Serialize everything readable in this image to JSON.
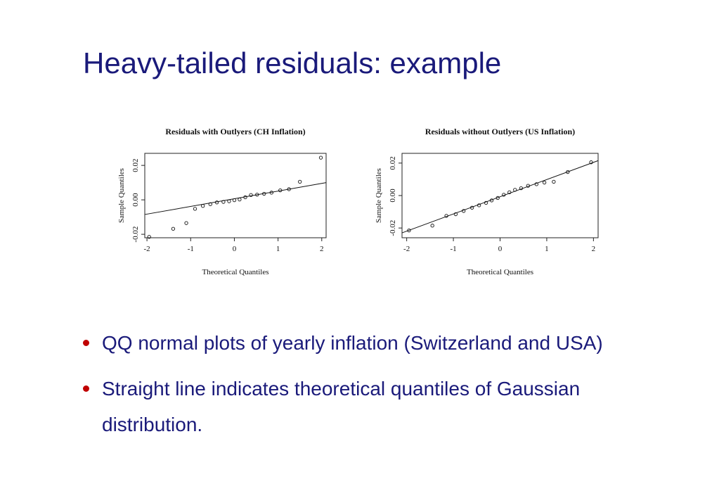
{
  "slide": {
    "title": "Heavy-tailed residuals: example",
    "bullets": [
      "QQ normal plots of yearly inflation (Switzerland and USA)",
      "Straight line indicates theoretical quantiles of Gaussian distribution."
    ]
  },
  "chart_data": [
    {
      "type": "scatter",
      "title": "Residuals with Outlyers (CH Inflation)",
      "xlabel": "Theoretical Quantiles",
      "ylabel": "Sample Quantiles",
      "xlim": [
        -2.05,
        2.1
      ],
      "ylim": [
        -0.022,
        0.027
      ],
      "xticks": [
        -2,
        -1,
        0,
        1,
        2
      ],
      "yticks": [
        -0.02,
        0.0,
        0.02
      ],
      "ytick_labels": [
        "-0.02",
        "0.00",
        "0.02"
      ],
      "grid": false,
      "points": [
        {
          "x": -1.95,
          "y": -0.0215
        },
        {
          "x": -1.4,
          "y": -0.0168
        },
        {
          "x": -1.1,
          "y": -0.0135
        },
        {
          "x": -0.9,
          "y": -0.0052
        },
        {
          "x": -0.72,
          "y": -0.0035
        },
        {
          "x": -0.55,
          "y": -0.0025
        },
        {
          "x": -0.4,
          "y": -0.0015
        },
        {
          "x": -0.25,
          "y": -0.0012
        },
        {
          "x": -0.12,
          "y": -0.0008
        },
        {
          "x": 0.0,
          "y": -0.0002
        },
        {
          "x": 0.12,
          "y": 0.0002
        },
        {
          "x": 0.25,
          "y": 0.0015
        },
        {
          "x": 0.38,
          "y": 0.0028
        },
        {
          "x": 0.52,
          "y": 0.003
        },
        {
          "x": 0.68,
          "y": 0.0035
        },
        {
          "x": 0.85,
          "y": 0.0042
        },
        {
          "x": 1.05,
          "y": 0.0055
        },
        {
          "x": 1.25,
          "y": 0.0062
        },
        {
          "x": 1.5,
          "y": 0.0105
        },
        {
          "x": 1.98,
          "y": 0.0245
        }
      ],
      "reference_line": [
        [
          -2.05,
          -0.0085
        ],
        [
          2.1,
          0.01
        ]
      ]
    },
    {
      "type": "scatter",
      "title": "Residuals without Outlyers (US Inflation)",
      "xlabel": "Theoretical Quantiles",
      "ylabel": "Sample Quantiles",
      "xlim": [
        -2.1,
        2.1
      ],
      "ylim": [
        -0.026,
        0.026
      ],
      "xticks": [
        -2,
        -1,
        0,
        1,
        2
      ],
      "yticks": [
        -0.02,
        0.0,
        0.02
      ],
      "ytick_labels": [
        "-0.02",
        "0.00",
        "0.02"
      ],
      "grid": false,
      "points": [
        {
          "x": -1.95,
          "y": -0.0215
        },
        {
          "x": -1.45,
          "y": -0.0185
        },
        {
          "x": -1.15,
          "y": -0.0125
        },
        {
          "x": -0.95,
          "y": -0.0115
        },
        {
          "x": -0.78,
          "y": -0.0095
        },
        {
          "x": -0.6,
          "y": -0.0075
        },
        {
          "x": -0.45,
          "y": -0.006
        },
        {
          "x": -0.3,
          "y": -0.0045
        },
        {
          "x": -0.18,
          "y": -0.003
        },
        {
          "x": -0.05,
          "y": -0.0015
        },
        {
          "x": 0.08,
          "y": 0.0005
        },
        {
          "x": 0.2,
          "y": 0.002
        },
        {
          "x": 0.32,
          "y": 0.0035
        },
        {
          "x": 0.45,
          "y": 0.0045
        },
        {
          "x": 0.6,
          "y": 0.006
        },
        {
          "x": 0.78,
          "y": 0.007
        },
        {
          "x": 0.95,
          "y": 0.008
        },
        {
          "x": 1.15,
          "y": 0.0085
        },
        {
          "x": 1.45,
          "y": 0.0145
        },
        {
          "x": 1.95,
          "y": 0.0205
        }
      ],
      "reference_line": [
        [
          -2.1,
          -0.023
        ],
        [
          2.1,
          0.0215
        ]
      ]
    }
  ]
}
